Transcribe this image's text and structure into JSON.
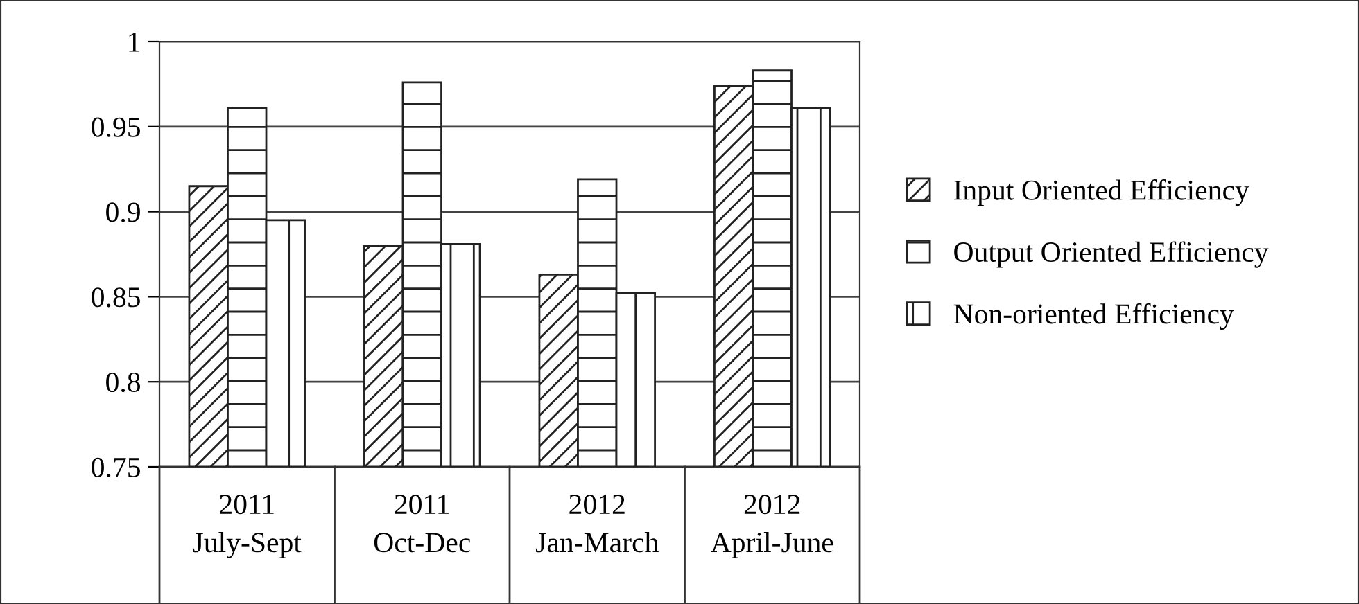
{
  "chart_data": {
    "type": "bar",
    "categories": [
      "2011\nJuly-Sept",
      "2011\nOct-Dec",
      "2012\nJan-March",
      "2012\nApril-June"
    ],
    "series": [
      {
        "name": "Input Oriented Efficiency",
        "color": "#222222",
        "values": [
          0.915,
          0.88,
          0.863,
          0.974
        ]
      },
      {
        "name": "Output Oriented Efficiency",
        "color": "#222222",
        "values": [
          0.961,
          0.976,
          0.919,
          0.983
        ]
      },
      {
        "name": "Non-oriented Efficiency",
        "color": "#222222",
        "values": [
          0.895,
          0.881,
          0.852,
          0.961
        ]
      }
    ],
    "ylim": [
      0.75,
      1
    ],
    "yticks": [
      0.75,
      0.8,
      0.85,
      0.9,
      0.95,
      1
    ],
    "grid": "y",
    "legend": "right"
  }
}
